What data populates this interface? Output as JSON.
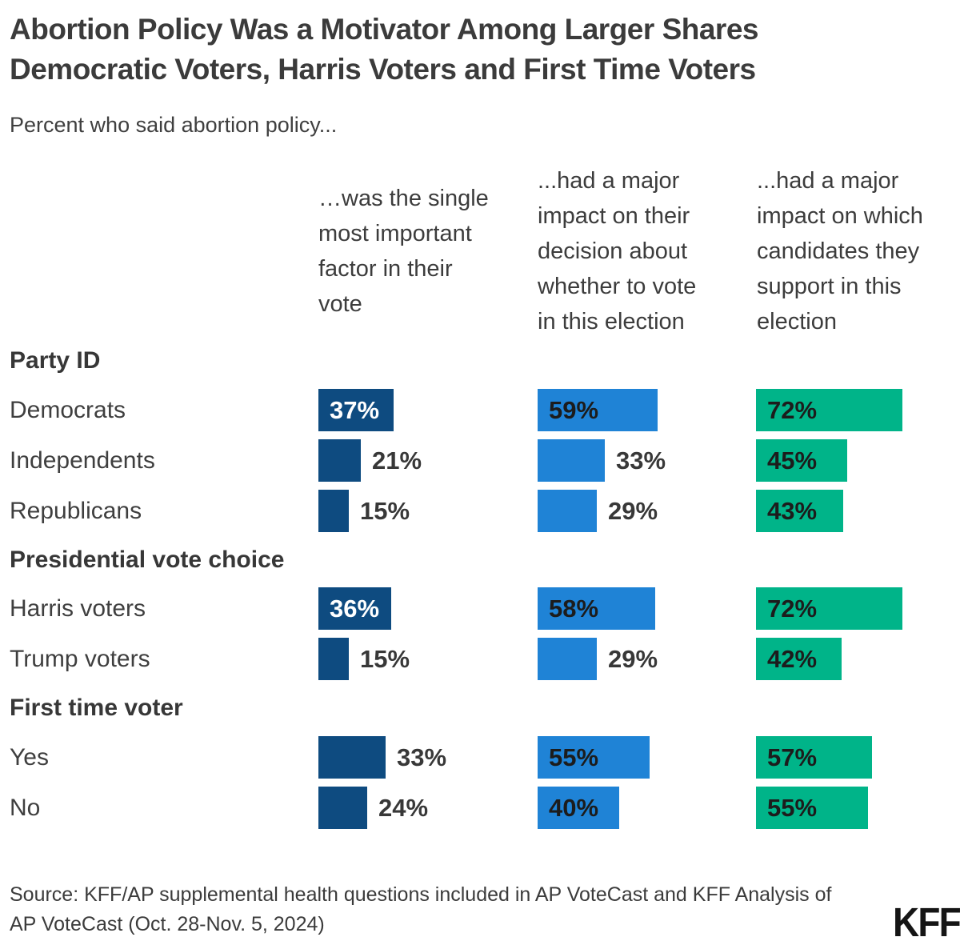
{
  "header": {
    "title": "Abortion Policy Was a Motivator Among Larger Shares\nDemocratic Voters, Harris Voters and First Time Voters",
    "subtitle": "Percent who said abortion policy..."
  },
  "chart_data": {
    "type": "bar",
    "orientation": "horizontal",
    "unit": "percent",
    "xlim": [
      0,
      100
    ],
    "value_label_format": "{value}%",
    "grid": false,
    "columns": [
      {
        "id": "single-most-important-factor",
        "label": "…was the single\nmost important\nfactor in their\nvote",
        "color": "#0E4B80",
        "inside_label_color": "#FFFFFF"
      },
      {
        "id": "major-impact-whether-to-vote",
        "label": "...had a major\nimpact on their\ndecision about\nwhether to vote\nin this election",
        "color": "#1F83D6",
        "inside_label_color": "#1C1C1C"
      },
      {
        "id": "major-impact-which-candidates",
        "label": "...had a major\nimpact on which\ncandidates they\nsupport in this\nelection",
        "color": "#00B489",
        "inside_label_color": "#1C1C1C"
      }
    ],
    "sections": [
      {
        "header": "Party ID",
        "rows": [
          {
            "label": "Democrats",
            "values": [
              37,
              59,
              72
            ]
          },
          {
            "label": "Independents",
            "values": [
              21,
              33,
              45
            ]
          },
          {
            "label": "Republicans",
            "values": [
              15,
              29,
              43
            ]
          }
        ]
      },
      {
        "header": "Presidential vote choice",
        "rows": [
          {
            "label": "Harris voters",
            "values": [
              36,
              58,
              72
            ]
          },
          {
            "label": "Trump voters",
            "values": [
              15,
              29,
              42
            ]
          }
        ]
      },
      {
        "header": "First time voter",
        "rows": [
          {
            "label": "Yes",
            "values": [
              33,
              55,
              57
            ]
          },
          {
            "label": "No",
            "values": [
              24,
              40,
              55
            ]
          }
        ]
      }
    ]
  },
  "footer": {
    "source": "Source: KFF/AP supplemental health questions included in AP VoteCast and KFF Analysis of\nAP VoteCast (Oct. 28-Nov. 5, 2024)",
    "logo": "KFF"
  }
}
